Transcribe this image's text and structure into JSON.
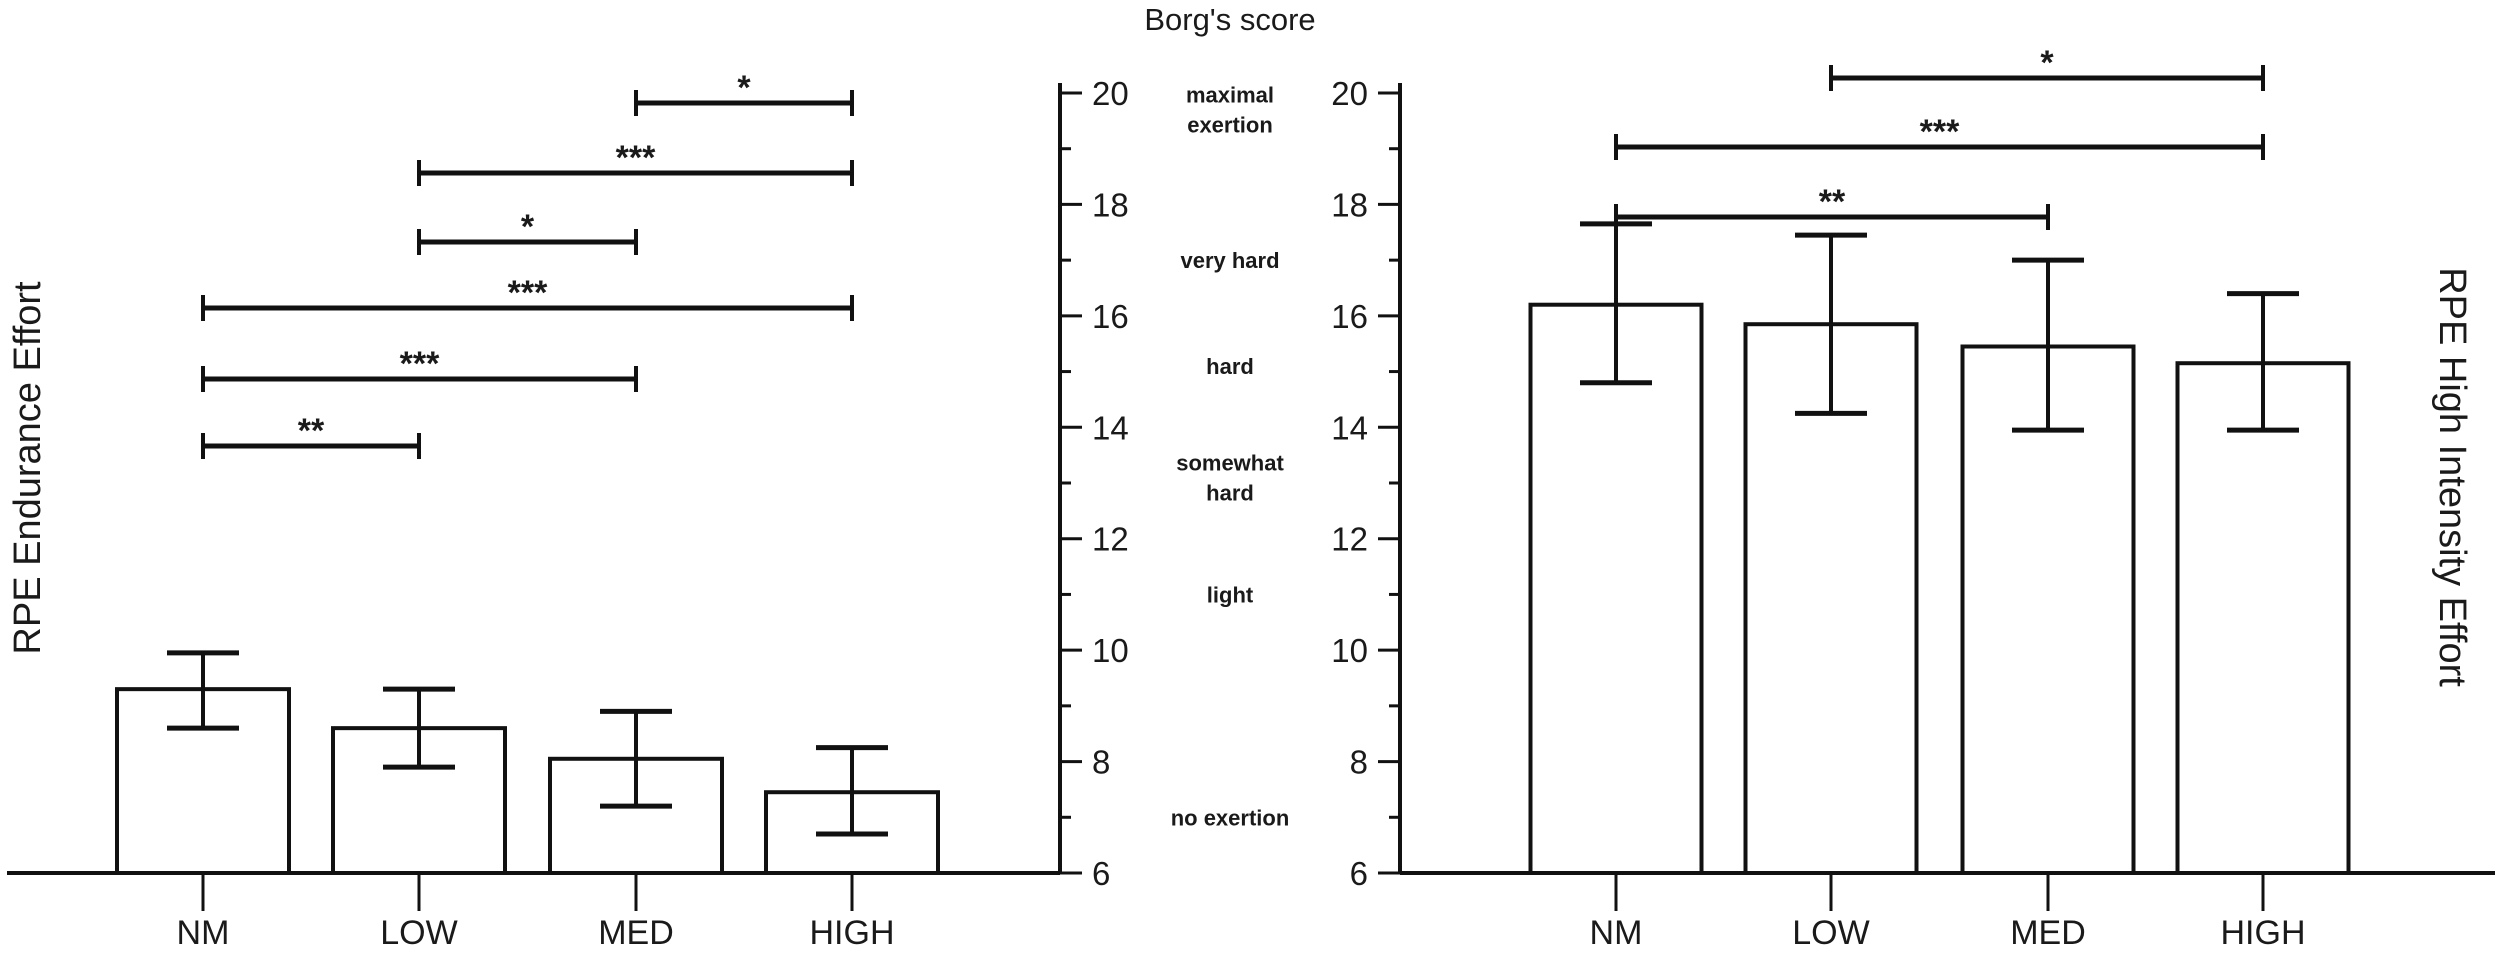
{
  "figure": {
    "center_title": "Borg's score",
    "borg_descriptors": [
      {
        "lines": [
          "maximal",
          "exertion"
        ],
        "y_value": 19.7
      },
      {
        "lines": [
          "very hard"
        ],
        "y_value": 17.0
      },
      {
        "lines": [
          "hard"
        ],
        "y_value": 15.1
      },
      {
        "lines": [
          "somewhat",
          "hard"
        ],
        "y_value": 13.1
      },
      {
        "lines": [
          "light"
        ],
        "y_value": 11.0
      },
      {
        "lines": [
          "no exertion"
        ],
        "y_value": 7.0
      }
    ],
    "colors": {
      "bar_fill": "#ffffff",
      "stroke": "#111111",
      "text": "#1a1a1a"
    }
  },
  "chart_data": [
    {
      "type": "bar",
      "title": "",
      "xlabel": "",
      "ylabel": "RPE Endurance Effort",
      "ylim": [
        6,
        20
      ],
      "yticks": [
        6,
        8,
        10,
        12,
        14,
        16,
        18,
        20
      ],
      "y_axis_position": "right",
      "grid": false,
      "categories": [
        "NM",
        "LOW",
        "MED",
        "HIGH"
      ],
      "values": [
        9.3,
        8.6,
        8.05,
        7.45
      ],
      "error_upper": [
        9.95,
        9.3,
        8.9,
        8.25
      ],
      "error_lower": [
        8.6,
        7.9,
        7.2,
        6.7
      ],
      "significance": [
        {
          "from": "MED",
          "to": "HIGH",
          "label": "*"
        },
        {
          "from": "LOW",
          "to": "HIGH",
          "label": "***"
        },
        {
          "from": "LOW",
          "to": "MED",
          "label": "*"
        },
        {
          "from": "NM",
          "to": "HIGH",
          "label": "***"
        },
        {
          "from": "NM",
          "to": "MED",
          "label": "***"
        },
        {
          "from": "NM",
          "to": "LOW",
          "label": "**"
        }
      ]
    },
    {
      "type": "bar",
      "title": "",
      "xlabel": "",
      "ylabel": "RPE High Intensity Effort",
      "ylim": [
        6,
        20
      ],
      "yticks": [
        6,
        8,
        10,
        12,
        14,
        16,
        18,
        20
      ],
      "y_axis_position": "left",
      "grid": false,
      "categories": [
        "NM",
        "LOW",
        "MED",
        "HIGH"
      ],
      "values": [
        16.2,
        15.85,
        15.45,
        15.15
      ],
      "error_upper": [
        17.65,
        17.45,
        17.0,
        16.4
      ],
      "error_lower": [
        14.8,
        14.25,
        13.95,
        13.95
      ],
      "significance": [
        {
          "from": "LOW",
          "to": "HIGH",
          "label": "*"
        },
        {
          "from": "NM",
          "to": "HIGH",
          "label": "***"
        },
        {
          "from": "NM",
          "to": "MED",
          "label": "**"
        }
      ]
    }
  ]
}
